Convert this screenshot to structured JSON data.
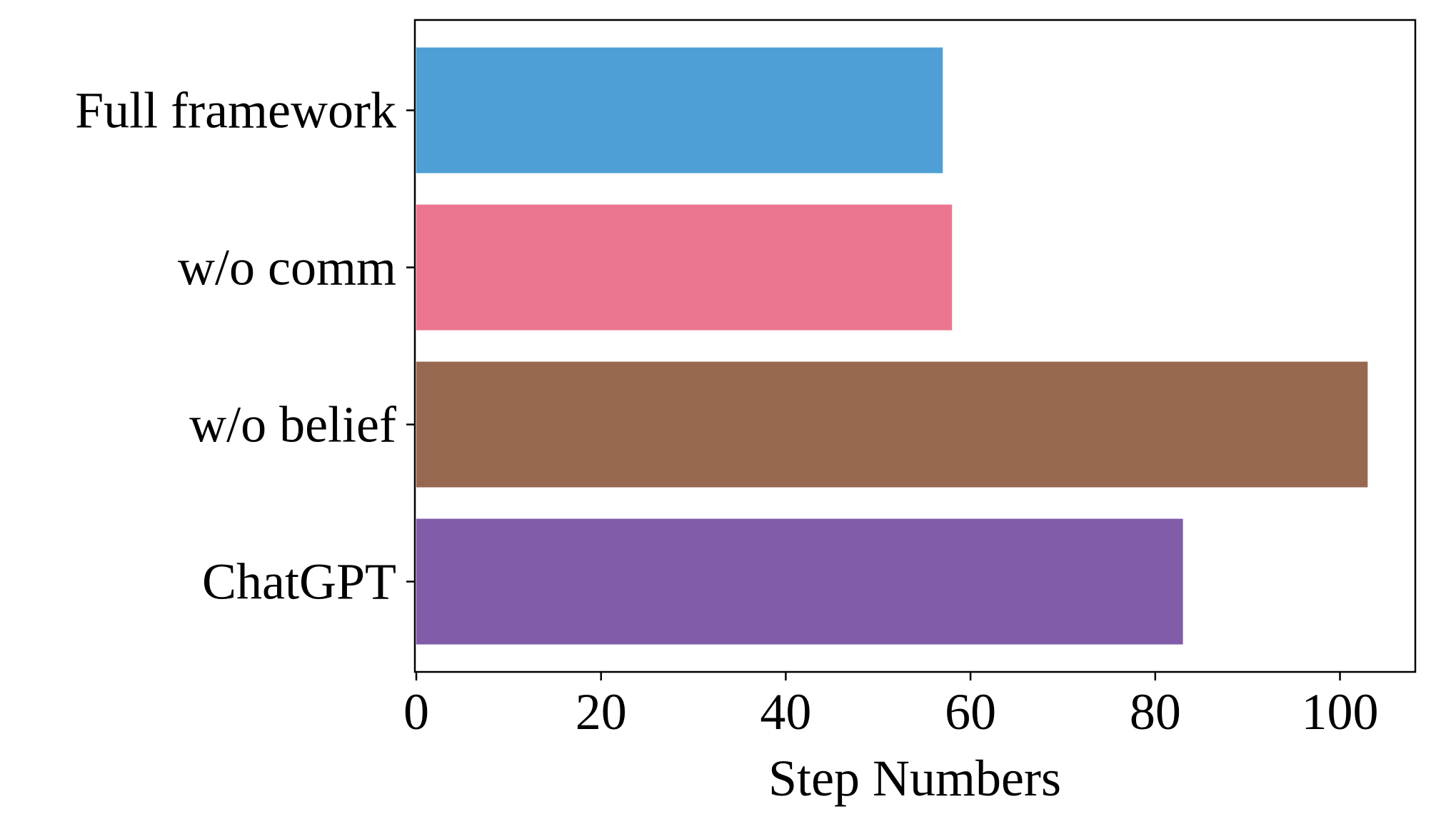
{
  "chart_data": {
    "type": "bar",
    "orientation": "horizontal",
    "title": "",
    "xlabel": "Step Numbers",
    "ylabel": "",
    "categories": [
      "Full framework",
      "w/o comm",
      "w/o belief",
      "ChatGPT"
    ],
    "values": [
      57,
      58,
      103,
      83
    ],
    "colors": [
      "#4e9fd5",
      "#eb758f",
      "#976850",
      "#805ca9"
    ],
    "xlim": [
      0,
      108
    ],
    "xticks": [
      0,
      20,
      40,
      60,
      80,
      100
    ],
    "grid": false,
    "legend": null
  }
}
